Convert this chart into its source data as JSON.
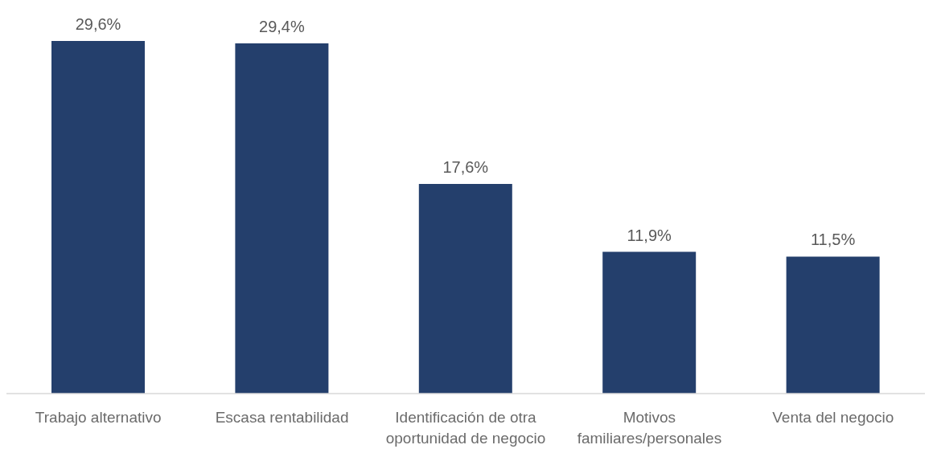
{
  "chart_data": {
    "type": "bar",
    "categories": [
      "Trabajo alternativo",
      "Escasa rentabilidad",
      "Identificación de otra oportunidad de negocio",
      "Motivos familiares/personales",
      "Venta del negocio"
    ],
    "values": [
      29.6,
      29.4,
      17.6,
      11.9,
      11.5
    ],
    "color": "#243f6c",
    "value_labels": [
      "29,6%",
      "29,4%",
      "17,6%",
      "11,9%",
      "11,5%"
    ]
  }
}
